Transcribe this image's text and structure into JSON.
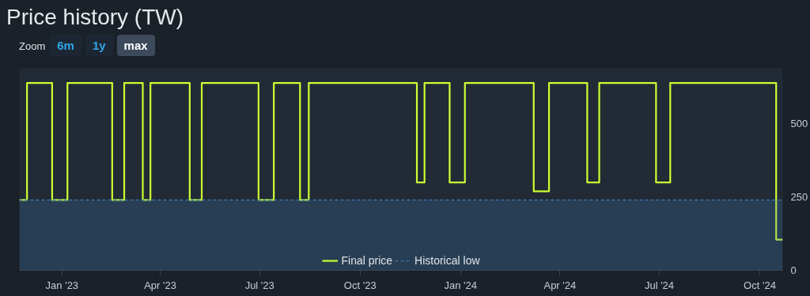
{
  "chart_data": {
    "type": "step",
    "title": "Price history (TW)",
    "annotations": [
      "Zoom",
      "6m",
      "1y",
      "max"
    ],
    "x": [
      "2022-11-23",
      "2022-11-30",
      "2022-12-23",
      "2023-01-06",
      "2023-02-16",
      "2023-02-27",
      "2023-03-16",
      "2023-03-23",
      "2023-04-28",
      "2023-05-09",
      "2023-06-30",
      "2023-07-14",
      "2023-08-07",
      "2023-08-15",
      "2023-11-22",
      "2023-11-29",
      "2023-12-22",
      "2024-01-05",
      "2024-03-08",
      "2024-03-22",
      "2024-04-26",
      "2024-05-07",
      "2024-06-28",
      "2024-07-11",
      "2024-10-16",
      "2024-10-22"
    ],
    "series": [
      {
        "name": "Final price",
        "color": "#ccff33",
        "values": [
          240,
          640,
          240,
          640,
          240,
          640,
          240,
          640,
          240,
          640,
          240,
          640,
          240,
          640,
          300,
          640,
          300,
          640,
          270,
          640,
          300,
          640,
          300,
          640,
          105,
          105
        ]
      },
      {
        "name": "Historical low",
        "type": "area",
        "color": "#3b7cb3",
        "line_style": "dashed",
        "values": [
          240,
          240,
          240,
          240,
          240,
          240,
          240,
          240,
          240,
          240,
          240,
          240,
          240,
          240,
          240,
          240,
          240,
          240,
          240,
          240,
          240,
          240,
          240,
          240,
          240,
          240
        ]
      }
    ],
    "xlim": [
      "2022-11-23",
      "2024-10-22"
    ],
    "xticks": [
      {
        "value": "2023-01-01",
        "label": "Jan '23"
      },
      {
        "value": "2023-04-01",
        "label": "Apr '23"
      },
      {
        "value": "2023-07-01",
        "label": "Jul '23"
      },
      {
        "value": "2023-10-01",
        "label": "Oct '23"
      },
      {
        "value": "2024-01-01",
        "label": "Jan '24"
      },
      {
        "value": "2024-04-01",
        "label": "Apr '24"
      },
      {
        "value": "2024-07-01",
        "label": "Jul '24"
      },
      {
        "value": "2024-10-01",
        "label": "Oct '24"
      }
    ],
    "ylim": [
      0,
      690
    ],
    "yticks": [
      0,
      250,
      500
    ],
    "grid": false,
    "legend": "bottom",
    "marker": "none",
    "line_style": "solid"
  }
}
